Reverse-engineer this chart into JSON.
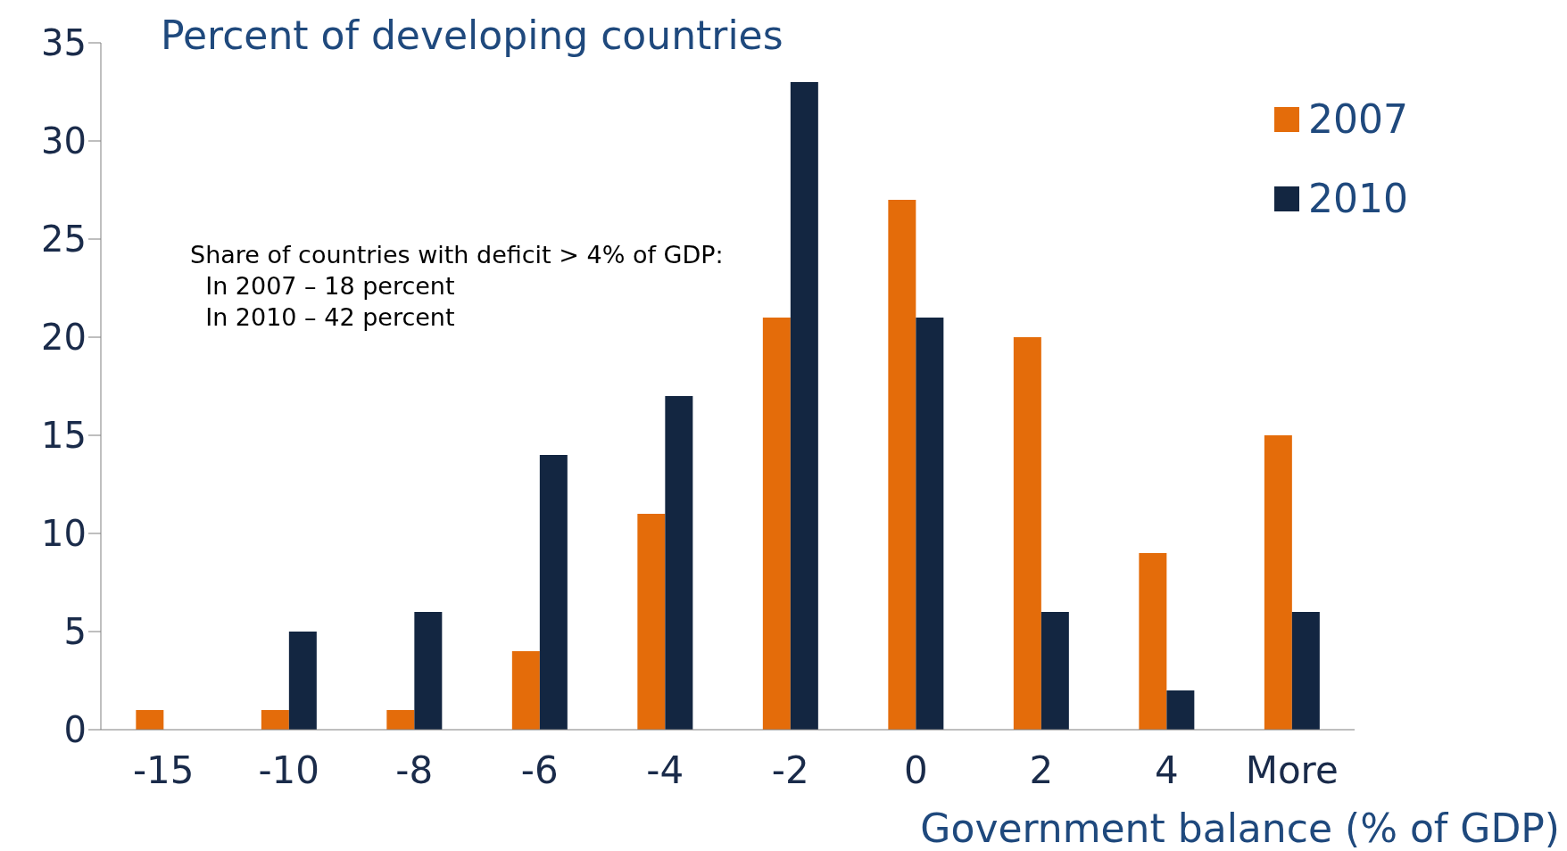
{
  "chart_data": {
    "type": "bar",
    "title": "Percent of developing countries",
    "xlabel": "Government balance (% of GDP)",
    "categories": [
      "-15",
      "-10",
      "-8",
      "-6",
      "-4",
      "-2",
      "0",
      "2",
      "4",
      "More"
    ],
    "series": [
      {
        "name": "2007",
        "color": "#e46c0a",
        "values": [
          1,
          1,
          1,
          4,
          11,
          21,
          27,
          20,
          9,
          15
        ]
      },
      {
        "name": "2010",
        "color": "#132641",
        "values": [
          0,
          5,
          6,
          14,
          17,
          33,
          21,
          6,
          2,
          6
        ]
      }
    ],
    "ylim": [
      0,
      35
    ],
    "yticks": [
      0,
      5,
      10,
      15,
      20,
      25,
      30,
      35
    ],
    "grid": false,
    "legend": "top right",
    "annotations": [
      "Share of countries with deficit > 4% of GDP:\n  In 2007 – 18 percent\n  In 2010 – 42 percent"
    ]
  }
}
